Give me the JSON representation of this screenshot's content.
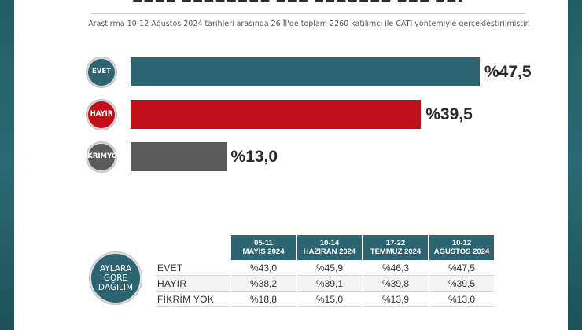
{
  "colors": {
    "evet": "#2d6471",
    "hayir": "#c2101a",
    "fikrim_yok": "#5b5b5b"
  },
  "subtitle": "Araştırma 10-12 Ağustos 2024 tarihleri arasında 26 İl'de toplam 2260 katılımcı ile CATI yöntemiyle gerçekleştirilmiştir.",
  "chart_data": [
    {
      "type": "bar",
      "orientation": "horizontal",
      "categories": [
        "EVET",
        "HAYIR",
        "FİKRİM YOK"
      ],
      "category_lines": [
        [
          "EVET"
        ],
        [
          "HAYIR"
        ],
        [
          "FİKRİM",
          "YOK"
        ]
      ],
      "values": [
        47.5,
        39.5,
        13.0
      ],
      "value_labels": [
        "%47,5",
        "%39,5",
        "%13,0"
      ],
      "colors": [
        "#2d6471",
        "#c2101a",
        "#5b5b5b"
      ],
      "xlim": [
        0,
        47.5
      ],
      "grid": false
    },
    {
      "type": "table",
      "badge_lines": [
        "AYLARA",
        "GÖRE",
        "DAĞILIM"
      ],
      "columns": [
        {
          "date": "05-11",
          "month": "MAYIS 2024"
        },
        {
          "date": "10-14",
          "month": "HAZİRAN 2024"
        },
        {
          "date": "17-22",
          "month": "TEMMUZ 2024"
        },
        {
          "date": "10-12",
          "month": "AĞUSTOS 2024"
        }
      ],
      "rows": [
        {
          "label": "EVET",
          "values": [
            "%43,0",
            "%45,9",
            "%46,3",
            "%47,5"
          ]
        },
        {
          "label": "HAYIR",
          "values": [
            "%38,2",
            "%39,1",
            "%39,8",
            "%39,5"
          ]
        },
        {
          "label": "FİKRİM YOK",
          "values": [
            "%18,8",
            "%15,0",
            "%13,9",
            "%13,0"
          ]
        }
      ]
    }
  ]
}
